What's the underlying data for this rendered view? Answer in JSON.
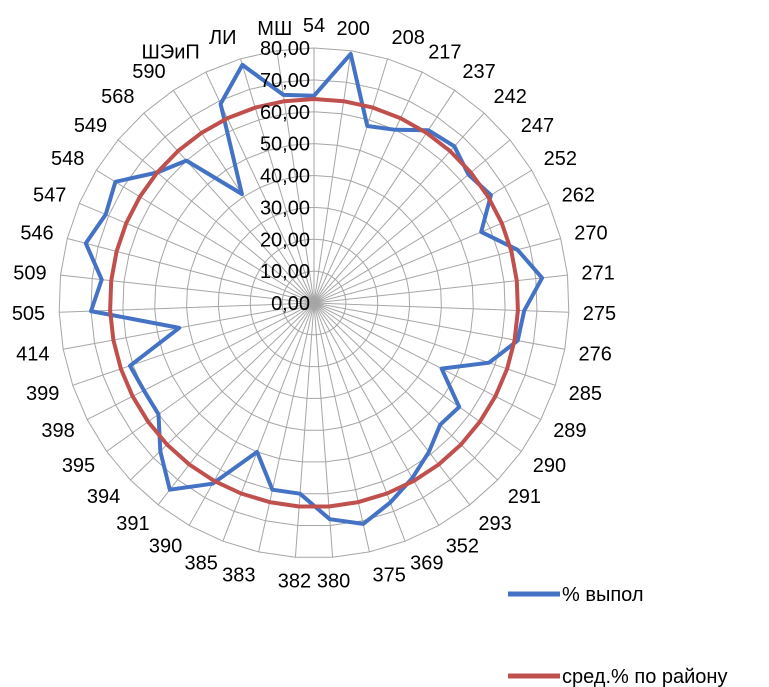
{
  "chart_data": {
    "type": "radar",
    "title": "",
    "rlim": [
      0,
      80
    ],
    "r_ticks": [
      "0,00",
      "10,00",
      "20,00",
      "30,00",
      "40,00",
      "50,00",
      "60,00",
      "70,00",
      "80,00"
    ],
    "grid": true,
    "legend_position": "bottom-right",
    "categories": [
      "54",
      "200",
      "208",
      "217",
      "237",
      "242",
      "247",
      "252",
      "262",
      "270",
      "271",
      "275",
      "276",
      "285",
      "289",
      "290",
      "291",
      "293",
      "352",
      "369",
      "375",
      "380",
      "382",
      "383",
      "385",
      "390",
      "391",
      "394",
      "395",
      "398",
      "399",
      "414",
      "505",
      "509",
      "546",
      "547",
      "548",
      "549",
      "568",
      "590",
      "ШЭиП",
      "ЛИ",
      "МШ"
    ],
    "series": [
      {
        "name": "% выпол",
        "color": "#4472C4",
        "values": [
          65,
          79,
          58,
          60,
          65,
          66,
          63,
          65,
          57,
          66,
          72,
          66,
          65,
          58,
          45,
          56,
          55,
          59,
          63,
          67,
          71,
          68,
          60,
          60,
          50,
          65,
          74,
          67,
          60,
          60,
          61,
          43,
          70,
          67,
          74,
          71,
          73,
          64,
          60,
          41,
          69,
          78,
          66
        ]
      },
      {
        "name": "сред.% по району",
        "color": "#C0504D",
        "values": [
          64,
          64,
          64,
          64,
          64,
          64,
          64,
          64,
          64,
          64,
          64,
          64,
          64,
          64,
          64,
          64,
          64,
          64,
          64,
          64,
          64,
          64,
          64,
          64,
          64,
          64,
          64,
          64,
          64,
          64,
          64,
          64,
          64,
          64,
          64,
          64,
          64,
          64,
          64,
          64,
          64,
          64,
          64
        ]
      }
    ]
  }
}
